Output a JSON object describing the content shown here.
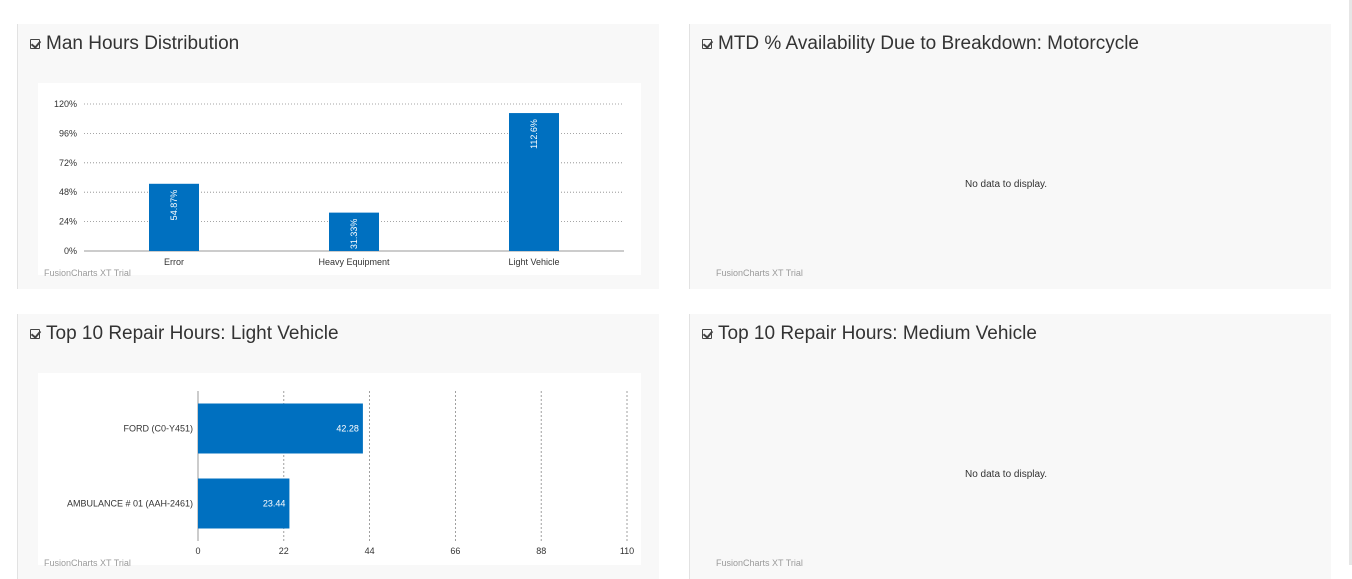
{
  "panels": {
    "man_hours": {
      "title": "Man Hours Distribution",
      "watermark": "FusionCharts XT Trial"
    },
    "mtd_availability": {
      "title": "MTD % Availability Due to Breakdown: Motorcycle",
      "no_data": "No data to display.",
      "watermark": "FusionCharts XT Trial"
    },
    "top10_light": {
      "title": "Top 10 Repair Hours: Light Vehicle",
      "watermark": "FusionCharts XT Trial"
    },
    "top10_medium": {
      "title": "Top 10 Repair Hours: Medium Vehicle",
      "no_data": "No data to display.",
      "watermark": "FusionCharts XT Trial"
    }
  },
  "chart_data": [
    {
      "type": "bar",
      "orientation": "vertical",
      "title": "Man Hours Distribution",
      "categories": [
        "Error",
        "Heavy Equipment",
        "Light Vehicle"
      ],
      "values": [
        54.87,
        31.33,
        112.6
      ],
      "value_labels": [
        "54.87%",
        "31.33%",
        "112.6%"
      ],
      "ylim": [
        0,
        120
      ],
      "yticks": [
        0,
        24,
        48,
        72,
        96,
        120
      ],
      "ytick_labels": [
        "0%",
        "24%",
        "48%",
        "72%",
        "96%",
        "120%"
      ],
      "grid": true,
      "bar_color": "#0070c0"
    },
    {
      "type": "bar",
      "orientation": "horizontal",
      "title": "Top 10 Repair Hours: Light Vehicle",
      "categories": [
        "FORD (C0-Y451)",
        "AMBULANCE # 01 (AAH-2461)"
      ],
      "values": [
        42.28,
        23.44
      ],
      "value_labels": [
        "42.28",
        "23.44"
      ],
      "xlim": [
        0,
        110
      ],
      "xticks": [
        0,
        22,
        44,
        66,
        88,
        110
      ],
      "xtick_labels": [
        "0",
        "22",
        "44",
        "66",
        "88",
        "110"
      ],
      "grid": true,
      "bar_color": "#0070c0"
    }
  ]
}
